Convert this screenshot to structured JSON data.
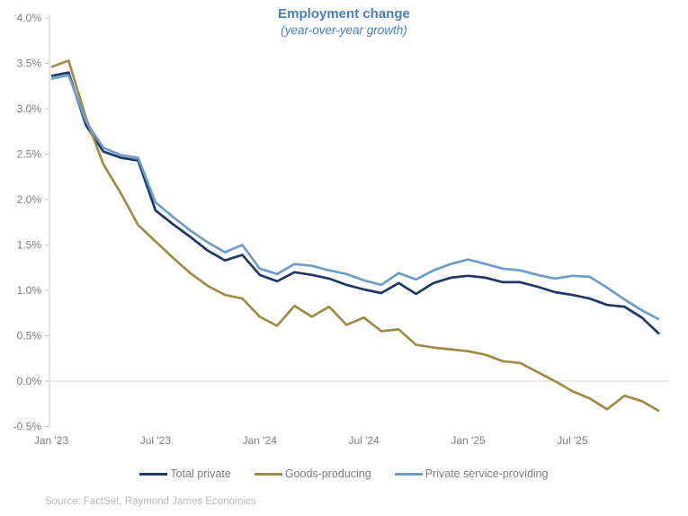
{
  "title": "Employment change",
  "subtitle": "(year-over-year growth)",
  "source": "Source: FactSet, Raymond James Economics",
  "colors": {
    "title_text": "#4A7EBC",
    "axis_text": "#7F7F7F",
    "legend_text": "#7F7F7F",
    "source_text": "#B9B9B9",
    "axis_line": "#C8C8C8",
    "gridline": "#D9D9D9",
    "total_private": "#1F3864",
    "goods_producing": "#A08C46",
    "private_service_providing": "#6D9DC9"
  },
  "chart_data": {
    "type": "line",
    "title": "Employment change",
    "subtitle": "(year-over-year growth)",
    "x": [
      "Jan '23",
      "Feb '23",
      "Mar '23",
      "Apr '23",
      "May '23",
      "Jun '23",
      "Jul '23",
      "Aug '23",
      "Sep '23",
      "Oct '23",
      "Nov '23",
      "Dec '23",
      "Jan '24",
      "Feb '24",
      "Mar '24",
      "Apr '24",
      "May '24",
      "Jun '24",
      "Jul '24",
      "Aug '24",
      "Sep '24",
      "Oct '24",
      "Nov '24",
      "Dec '24",
      "Jan '25",
      "Feb '25",
      "Mar '25",
      "Apr '25",
      "May '25",
      "Jun '25",
      "Jul '25",
      "Aug '25",
      "Sep '25",
      "Oct '25",
      "Nov '25",
      "Dec '25"
    ],
    "x_axis_ticks": [
      {
        "label": "Jan '23",
        "index": 0
      },
      {
        "label": "Jul '23",
        "index": 6
      },
      {
        "label": "Jan '24",
        "index": 12
      },
      {
        "label": "Jul '24",
        "index": 18
      },
      {
        "label": "Jan '25",
        "index": 24
      },
      {
        "label": "Jul '25",
        "index": 30
      }
    ],
    "y_axis_ticks": [
      {
        "label": "4.0%",
        "value": 4.0
      },
      {
        "label": "3.5%",
        "value": 3.5
      },
      {
        "label": "3.0%",
        "value": 3.0
      },
      {
        "label": "2.5%",
        "value": 2.5
      },
      {
        "label": "2.0%",
        "value": 2.0
      },
      {
        "label": "1.5%",
        "value": 1.5
      },
      {
        "label": "1.0%",
        "value": 1.0
      },
      {
        "label": "0.5%",
        "value": 0.5
      },
      {
        "label": "0.0%",
        "value": 0.0
      },
      {
        "label": "-0.5%",
        "value": -0.5
      }
    ],
    "ylim": [
      -0.5,
      4.0
    ],
    "y_tick_step": 0.5,
    "grid": "horizontal line at 0.0% only",
    "legend_position": "bottom",
    "series": [
      {
        "name": "Total private",
        "color": "#1F3864",
        "values": [
          3.36,
          3.4,
          2.82,
          2.53,
          2.46,
          2.43,
          1.88,
          1.73,
          1.59,
          1.44,
          1.33,
          1.39,
          1.17,
          1.1,
          1.2,
          1.17,
          1.13,
          1.06,
          1.01,
          0.97,
          1.08,
          0.96,
          1.08,
          1.14,
          1.16,
          1.14,
          1.09,
          1.09,
          1.04,
          0.98,
          0.95,
          0.91,
          0.84,
          0.82,
          0.7,
          0.52
        ]
      },
      {
        "name": "Goods-producing",
        "color": "#A08C46",
        "values": [
          3.46,
          3.53,
          2.9,
          2.39,
          2.07,
          1.72,
          1.54,
          1.36,
          1.19,
          1.05,
          0.95,
          0.91,
          0.71,
          0.61,
          0.83,
          0.71,
          0.82,
          0.62,
          0.7,
          0.55,
          0.57,
          0.4,
          0.37,
          0.35,
          0.33,
          0.29,
          0.22,
          0.2,
          0.1,
          0.0,
          -0.11,
          -0.19,
          -0.31,
          -0.16,
          -0.22,
          -0.33
        ]
      },
      {
        "name": "Private service-providing",
        "color": "#6D9DC9",
        "values": [
          3.33,
          3.37,
          2.86,
          2.57,
          2.49,
          2.46,
          1.97,
          1.81,
          1.66,
          1.53,
          1.42,
          1.5,
          1.24,
          1.18,
          1.29,
          1.27,
          1.22,
          1.18,
          1.11,
          1.06,
          1.19,
          1.12,
          1.22,
          1.29,
          1.34,
          1.29,
          1.24,
          1.22,
          1.17,
          1.13,
          1.16,
          1.15,
          1.03,
          0.9,
          0.78,
          0.68
        ]
      }
    ]
  }
}
